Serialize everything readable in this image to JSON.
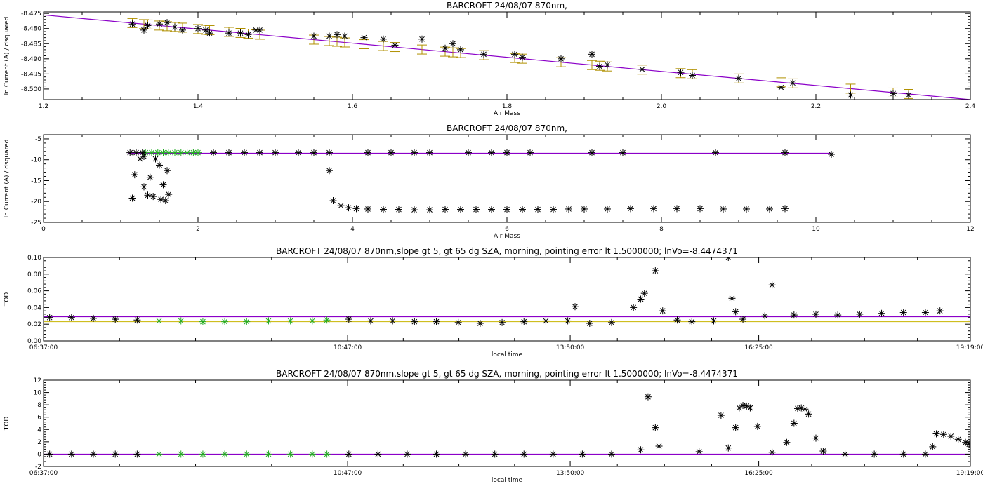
{
  "colors": {
    "fit_line": "#8b00c8",
    "error_bar": "#b09000",
    "selected_points": "#22aa22",
    "points": "#000000",
    "ref_line": "#c8b400"
  },
  "chart_data": [
    {
      "type": "scatter",
      "title": "BARCROFT 24/08/07 870nm,",
      "xlabel": "Air Mass",
      "ylabel": "ln Current (A) / dsquared",
      "xlim": [
        1.2,
        2.4
      ],
      "ylim": [
        -8.5035,
        -8.4745
      ],
      "xticks": [
        1.2,
        1.4,
        1.6,
        1.8,
        2.0,
        2.2,
        2.4
      ],
      "xtick_labels": [
        "1.2",
        "1.4",
        "1.6",
        "1.8",
        "2.0",
        "2.2",
        "2.4"
      ],
      "yticks": [
        -8.5,
        -8.495,
        -8.49,
        -8.485,
        -8.48,
        -8.475
      ],
      "ytick_labels": [
        "-8.500",
        "-8.495",
        "-8.490",
        "-8.485",
        "-8.480",
        "-8.475"
      ],
      "error_bar": 0.0015,
      "fit_line": {
        "x": [
          1.2,
          2.4
        ],
        "y": [
          -8.4755,
          -8.5035
        ]
      },
      "points": [
        [
          1.315,
          -8.4785
        ],
        [
          1.33,
          -8.4805
        ],
        [
          1.335,
          -8.479
        ],
        [
          1.35,
          -8.4785
        ],
        [
          1.36,
          -8.478
        ],
        [
          1.37,
          -8.4795
        ],
        [
          1.38,
          -8.4805
        ],
        [
          1.4,
          -8.48
        ],
        [
          1.41,
          -8.4805
        ],
        [
          1.415,
          -8.4815
        ],
        [
          1.44,
          -8.4815
        ],
        [
          1.455,
          -8.4815
        ],
        [
          1.465,
          -8.482
        ],
        [
          1.475,
          -8.4805
        ],
        [
          1.48,
          -8.4805
        ],
        [
          1.55,
          -8.4825
        ],
        [
          1.57,
          -8.4825
        ],
        [
          1.58,
          -8.482
        ],
        [
          1.59,
          -8.4825
        ],
        [
          1.615,
          -8.483
        ],
        [
          1.64,
          -8.4835
        ],
        [
          1.655,
          -8.4855
        ],
        [
          1.69,
          -8.4835
        ],
        [
          1.72,
          -8.4865
        ],
        [
          1.73,
          -8.485
        ],
        [
          1.74,
          -8.487
        ],
        [
          1.77,
          -8.4885
        ],
        [
          1.81,
          -8.4885
        ],
        [
          1.82,
          -8.4895
        ],
        [
          1.87,
          -8.49
        ],
        [
          1.91,
          -8.4885
        ],
        [
          1.92,
          -8.4925
        ],
        [
          1.93,
          -8.492
        ],
        [
          1.975,
          -8.4935
        ],
        [
          2.025,
          -8.4945
        ],
        [
          2.04,
          -8.4955
        ],
        [
          2.1,
          -8.4965
        ],
        [
          2.155,
          -8.4995
        ],
        [
          2.17,
          -8.498
        ],
        [
          2.245,
          -8.502
        ],
        [
          2.3,
          -8.5015
        ],
        [
          2.32,
          -8.502
        ]
      ]
    },
    {
      "type": "scatter",
      "title": "BARCROFT 24/08/07 870nm,",
      "xlabel": "Air Mass",
      "ylabel": "ln Current (A) / dsquared",
      "xlim": [
        0,
        12
      ],
      "ylim": [
        -25,
        -4
      ],
      "xticks": [
        0,
        2,
        4,
        6,
        8,
        10,
        12
      ],
      "xtick_labels": [
        "0",
        "2",
        "4",
        "6",
        "8",
        "10",
        "12"
      ],
      "yticks": [
        -25,
        -20,
        -15,
        -10,
        -5
      ],
      "ytick_labels": [
        "-25",
        "-20",
        "-15",
        "-10",
        "-5"
      ],
      "fit_line": {
        "x": [
          1.1,
          10.2
        ],
        "y": [
          -8.45,
          -8.45
        ]
      },
      "selected_points": [
        [
          1.32,
          -8.3
        ],
        [
          1.4,
          -8.3
        ],
        [
          1.48,
          -8.3
        ],
        [
          1.55,
          -8.3
        ],
        [
          1.62,
          -8.3
        ],
        [
          1.7,
          -8.3
        ],
        [
          1.78,
          -8.3
        ],
        [
          1.86,
          -8.3
        ],
        [
          1.94,
          -8.3
        ],
        [
          2.0,
          -8.3
        ]
      ],
      "points": [
        [
          1.12,
          -8.3
        ],
        [
          1.2,
          -8.3
        ],
        [
          1.28,
          -8.3
        ],
        [
          1.15,
          -19.2
        ],
        [
          1.18,
          -13.6
        ],
        [
          1.25,
          -9.8
        ],
        [
          1.3,
          -16.5
        ],
        [
          1.35,
          -18.5
        ],
        [
          1.38,
          -14.2
        ],
        [
          1.42,
          -18.8
        ],
        [
          1.5,
          -11.3
        ],
        [
          1.52,
          -19.5
        ],
        [
          1.55,
          -16.0
        ],
        [
          1.58,
          -19.8
        ],
        [
          1.6,
          -12.6
        ],
        [
          1.62,
          -18.3
        ],
        [
          1.3,
          -9.2
        ],
        [
          1.45,
          -9.8
        ],
        [
          2.2,
          -8.3
        ],
        [
          2.4,
          -8.3
        ],
        [
          2.6,
          -8.3
        ],
        [
          2.8,
          -8.3
        ],
        [
          3.0,
          -8.3
        ],
        [
          3.3,
          -8.3
        ],
        [
          3.5,
          -8.3
        ],
        [
          3.7,
          -8.3
        ],
        [
          4.2,
          -8.3
        ],
        [
          4.5,
          -8.3
        ],
        [
          4.8,
          -8.3
        ],
        [
          5.0,
          -8.3
        ],
        [
          5.5,
          -8.3
        ],
        [
          5.8,
          -8.3
        ],
        [
          6.0,
          -8.3
        ],
        [
          6.3,
          -8.3
        ],
        [
          7.1,
          -8.3
        ],
        [
          7.5,
          -8.3
        ],
        [
          8.7,
          -8.3
        ],
        [
          9.6,
          -8.3
        ],
        [
          10.2,
          -8.7
        ],
        [
          3.7,
          -12.6
        ],
        [
          3.75,
          -19.8
        ],
        [
          3.85,
          -21.0
        ],
        [
          3.95,
          -21.5
        ],
        [
          4.05,
          -21.7
        ],
        [
          4.2,
          -21.8
        ],
        [
          4.4,
          -21.9
        ],
        [
          4.6,
          -21.9
        ],
        [
          4.8,
          -22.0
        ],
        [
          5.0,
          -22.0
        ],
        [
          5.2,
          -21.9
        ],
        [
          5.4,
          -21.9
        ],
        [
          5.6,
          -21.9
        ],
        [
          5.8,
          -21.9
        ],
        [
          6.0,
          -21.9
        ],
        [
          6.2,
          -21.9
        ],
        [
          6.4,
          -21.9
        ],
        [
          6.6,
          -21.9
        ],
        [
          6.8,
          -21.8
        ],
        [
          7.0,
          -21.8
        ],
        [
          7.3,
          -21.8
        ],
        [
          7.6,
          -21.7
        ],
        [
          7.9,
          -21.7
        ],
        [
          8.2,
          -21.7
        ],
        [
          8.5,
          -21.7
        ],
        [
          8.8,
          -21.8
        ],
        [
          9.1,
          -21.8
        ],
        [
          9.4,
          -21.8
        ],
        [
          9.6,
          -21.7
        ]
      ]
    },
    {
      "type": "scatter",
      "title": "BARCROFT 24/08/07 870nm,slope gt 5, gt 65 dg SZA, morning, pointing error lt 1.5000000; lnVo=-8.4474371",
      "xlabel": "local time",
      "ylabel": "TOD",
      "xlim": [
        6.6167,
        19.3167
      ],
      "ylim": [
        0,
        0.1
      ],
      "xticks": [
        6.6167,
        10.7833,
        13.8333,
        16.4167,
        19.3167
      ],
      "xtick_labels": [
        "06:37:00",
        "10:47:00",
        "13:50:00",
        "16:25:00",
        "19:19:00"
      ],
      "yticks": [
        0,
        0.02,
        0.04,
        0.06,
        0.08,
        0.1
      ],
      "ytick_labels": [
        "0.00",
        "0.02",
        "0.04",
        "0.06",
        "0.08",
        "0.10"
      ],
      "fit_line": {
        "x": [
          6.6167,
          19.3167
        ],
        "y": [
          0.029,
          0.029
        ]
      },
      "ref_line": {
        "x": [
          6.6167,
          19.3167
        ],
        "y": [
          0.023,
          0.023
        ]
      },
      "selected_points": [
        [
          8.2,
          0.024
        ],
        [
          8.5,
          0.024
        ],
        [
          8.8,
          0.023
        ],
        [
          9.1,
          0.023
        ],
        [
          9.4,
          0.023
        ],
        [
          9.7,
          0.024
        ],
        [
          10.0,
          0.024
        ],
        [
          10.3,
          0.024
        ],
        [
          10.5,
          0.025
        ]
      ],
      "points": [
        [
          6.7,
          0.028
        ],
        [
          7.0,
          0.028
        ],
        [
          7.3,
          0.027
        ],
        [
          7.6,
          0.026
        ],
        [
          7.9,
          0.025
        ],
        [
          10.8,
          0.026
        ],
        [
          11.1,
          0.024
        ],
        [
          11.4,
          0.024
        ],
        [
          11.7,
          0.023
        ],
        [
          12.0,
          0.023
        ],
        [
          12.3,
          0.022
        ],
        [
          12.6,
          0.021
        ],
        [
          12.9,
          0.022
        ],
        [
          13.2,
          0.023
        ],
        [
          13.5,
          0.024
        ],
        [
          13.8,
          0.024
        ],
        [
          14.1,
          0.021
        ],
        [
          14.4,
          0.022
        ],
        [
          13.9,
          0.041
        ],
        [
          14.7,
          0.04
        ],
        [
          14.8,
          0.05
        ],
        [
          14.85,
          0.057
        ],
        [
          15.0,
          0.084
        ],
        [
          15.1,
          0.036
        ],
        [
          15.3,
          0.025
        ],
        [
          15.5,
          0.023
        ],
        [
          15.8,
          0.024
        ],
        [
          16.0,
          0.1
        ],
        [
          16.05,
          0.051
        ],
        [
          16.1,
          0.035
        ],
        [
          16.2,
          0.026
        ],
        [
          16.5,
          0.03
        ],
        [
          16.6,
          0.067
        ],
        [
          16.9,
          0.031
        ],
        [
          17.2,
          0.032
        ],
        [
          17.5,
          0.031
        ],
        [
          17.8,
          0.032
        ],
        [
          18.1,
          0.033
        ],
        [
          18.4,
          0.034
        ],
        [
          18.7,
          0.034
        ],
        [
          18.9,
          0.036
        ]
      ]
    },
    {
      "type": "scatter",
      "title": "BARCROFT 24/08/07 870nm,slope gt 5, gt 65 dg SZA, morning, pointing error lt 1.5000000; lnVo=-8.4474371",
      "xlabel": "local time",
      "ylabel": "TOD",
      "xlim": [
        6.6167,
        19.3167
      ],
      "ylim": [
        -2,
        12
      ],
      "xticks": [
        6.6167,
        10.7833,
        13.8333,
        16.4167,
        19.3167
      ],
      "xtick_labels": [
        "06:37:00",
        "10:47:00",
        "13:50:00",
        "16:25:00",
        "19:19:00"
      ],
      "yticks": [
        -2,
        0,
        2,
        4,
        6,
        8,
        10,
        12
      ],
      "ytick_labels": [
        "-2",
        "0",
        "2",
        "4",
        "6",
        "8",
        "10",
        "12"
      ],
      "fit_line": {
        "x": [
          6.6167,
          19.3167
        ],
        "y": [
          0,
          0
        ]
      },
      "selected_points": [
        [
          8.2,
          0
        ],
        [
          8.5,
          0
        ],
        [
          8.8,
          0
        ],
        [
          9.1,
          0
        ],
        [
          9.4,
          0
        ],
        [
          9.7,
          0
        ],
        [
          10.0,
          0
        ],
        [
          10.3,
          0
        ],
        [
          10.5,
          0
        ]
      ],
      "points": [
        [
          6.7,
          0
        ],
        [
          7.0,
          0
        ],
        [
          7.3,
          0
        ],
        [
          7.6,
          0
        ],
        [
          7.9,
          0
        ],
        [
          10.8,
          0
        ],
        [
          11.2,
          0
        ],
        [
          11.6,
          0
        ],
        [
          12.0,
          0
        ],
        [
          12.4,
          0
        ],
        [
          12.8,
          0
        ],
        [
          13.2,
          0
        ],
        [
          13.6,
          0
        ],
        [
          14.0,
          0
        ],
        [
          14.4,
          0
        ],
        [
          14.8,
          0.7
        ],
        [
          14.9,
          9.3
        ],
        [
          15.0,
          4.3
        ],
        [
          15.05,
          1.3
        ],
        [
          15.6,
          0.4
        ],
        [
          15.9,
          6.3
        ],
        [
          16.0,
          1.0
        ],
        [
          16.1,
          4.3
        ],
        [
          16.15,
          7.5
        ],
        [
          16.2,
          7.9
        ],
        [
          16.25,
          7.8
        ],
        [
          16.3,
          7.5
        ],
        [
          16.4,
          4.5
        ],
        [
          16.6,
          0.3
        ],
        [
          16.8,
          1.9
        ],
        [
          16.9,
          5.0
        ],
        [
          16.95,
          7.4
        ],
        [
          17.0,
          7.5
        ],
        [
          17.05,
          7.3
        ],
        [
          17.1,
          6.5
        ],
        [
          17.2,
          2.6
        ],
        [
          17.3,
          0.5
        ],
        [
          17.6,
          0
        ],
        [
          18.0,
          0
        ],
        [
          18.4,
          0
        ],
        [
          18.7,
          0
        ],
        [
          18.8,
          1.2
        ],
        [
          18.85,
          3.3
        ],
        [
          18.95,
          3.2
        ],
        [
          19.05,
          2.9
        ],
        [
          19.15,
          2.4
        ],
        [
          19.25,
          1.9
        ],
        [
          19.3,
          1.6
        ]
      ]
    }
  ]
}
